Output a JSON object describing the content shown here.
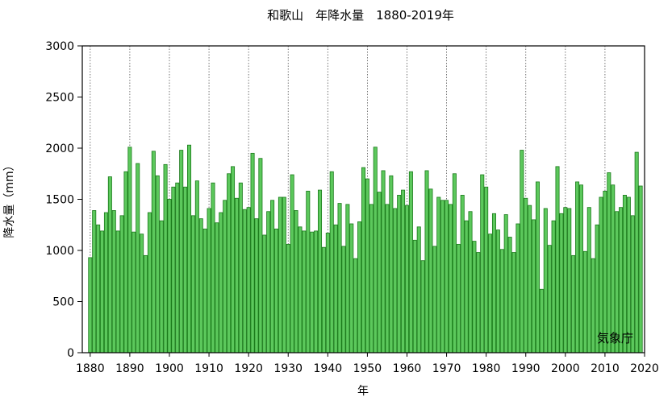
{
  "chart_data": {
    "type": "bar",
    "title": "和歌山　年降水量　1880-2019年",
    "xlabel": "年",
    "ylabel": "降水量（mm）",
    "credit": "気象庁",
    "xlim": [
      1878,
      2020
    ],
    "ylim": [
      0,
      3000
    ],
    "x_ticks": [
      1880,
      1890,
      1900,
      1910,
      1920,
      1930,
      1940,
      1950,
      1960,
      1970,
      1980,
      1990,
      2000,
      2010,
      2020
    ],
    "y_ticks": [
      0,
      500,
      1000,
      1500,
      2000,
      2500,
      3000
    ],
    "grid": "vertical-dotted",
    "colors": {
      "bar_fill": "#5cc85c",
      "bar_stroke": "#1a7a1a",
      "grid": "#555555",
      "axis": "#000000"
    },
    "start_year": 1880,
    "years": [
      1880,
      1881,
      1882,
      1883,
      1884,
      1885,
      1886,
      1887,
      1888,
      1889,
      1890,
      1891,
      1892,
      1893,
      1894,
      1895,
      1896,
      1897,
      1898,
      1899,
      1900,
      1901,
      1902,
      1903,
      1904,
      1905,
      1906,
      1907,
      1908,
      1909,
      1910,
      1911,
      1912,
      1913,
      1914,
      1915,
      1916,
      1917,
      1918,
      1919,
      1920,
      1921,
      1922,
      1923,
      1924,
      1925,
      1926,
      1927,
      1928,
      1929,
      1930,
      1931,
      1932,
      1933,
      1934,
      1935,
      1936,
      1937,
      1938,
      1939,
      1940,
      1941,
      1942,
      1943,
      1944,
      1945,
      1946,
      1947,
      1948,
      1949,
      1950,
      1951,
      1952,
      1953,
      1954,
      1955,
      1956,
      1957,
      1958,
      1959,
      1960,
      1961,
      1962,
      1963,
      1964,
      1965,
      1966,
      1967,
      1968,
      1969,
      1970,
      1971,
      1972,
      1973,
      1974,
      1975,
      1976,
      1977,
      1978,
      1979,
      1980,
      1981,
      1982,
      1983,
      1984,
      1985,
      1986,
      1987,
      1988,
      1989,
      1990,
      1991,
      1992,
      1993,
      1994,
      1995,
      1996,
      1997,
      1998,
      1999,
      2000,
      2001,
      2002,
      2003,
      2004,
      2005,
      2006,
      2007,
      2008,
      2009,
      2010,
      2011,
      2012,
      2013,
      2014,
      2015,
      2016,
      2017,
      2018,
      2019
    ],
    "values": [
      930,
      1390,
      1250,
      1190,
      1370,
      1720,
      1390,
      1190,
      1340,
      1770,
      2010,
      1180,
      1850,
      1160,
      950,
      1370,
      1970,
      1730,
      1290,
      1840,
      1500,
      1620,
      1660,
      1980,
      1620,
      2030,
      1340,
      1680,
      1310,
      1210,
      1410,
      1660,
      1270,
      1370,
      1490,
      1750,
      1820,
      1510,
      1660,
      1400,
      1420,
      1950,
      1310,
      1900,
      1150,
      1380,
      1490,
      1210,
      1520,
      1520,
      1060,
      1740,
      1390,
      1230,
      1190,
      1580,
      1180,
      1190,
      1590,
      1030,
      1170,
      1770,
      1250,
      1460,
      1040,
      1450,
      1260,
      920,
      1280,
      1810,
      1700,
      1450,
      2010,
      1570,
      1780,
      1450,
      1730,
      1410,
      1540,
      1590,
      1440,
      1770,
      1100,
      1230,
      900,
      1780,
      1600,
      1040,
      1520,
      1490,
      1490,
      1450,
      1750,
      1060,
      1540,
      1290,
      1380,
      1090,
      980,
      1740,
      1620,
      1160,
      1360,
      1200,
      1010,
      1350,
      1130,
      980,
      1260,
      1980,
      1510,
      1440,
      1300,
      1670,
      620,
      1410,
      1050,
      1290,
      1820,
      1360,
      1420,
      1410,
      950,
      1670,
      1640,
      990,
      1420,
      920,
      1250,
      1520,
      1580,
      1760,
      1640,
      1380,
      1420,
      1540,
      1520,
      1340,
      1960,
      1630
    ]
  }
}
